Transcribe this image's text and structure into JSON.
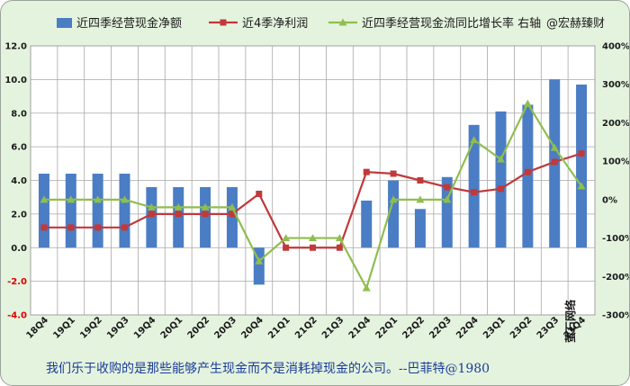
{
  "chart_data": {
    "type": "bar",
    "categories": [
      "18Q4",
      "19Q1",
      "19Q2",
      "19Q3",
      "19Q4",
      "20Q1",
      "20Q2",
      "20Q3",
      "20Q4",
      "21Q1",
      "21Q2",
      "21Q3",
      "21Q4",
      "22Q1",
      "22Q2",
      "22Q3",
      "22Q4",
      "23Q1",
      "23Q2",
      "23Q3",
      "23Q4"
    ],
    "series": [
      {
        "name": "近四季经营现金净额",
        "type": "bar",
        "axis": "left",
        "color": "#4a7dc4",
        "values": [
          4.4,
          4.4,
          4.4,
          4.4,
          3.6,
          3.6,
          3.6,
          3.6,
          -2.2,
          null,
          null,
          null,
          2.8,
          4.0,
          2.3,
          4.2,
          7.3,
          8.1,
          8.5,
          10.0,
          9.7
        ]
      },
      {
        "name": "近4季净利润",
        "type": "line",
        "axis": "left",
        "color": "#c0393b",
        "values": [
          1.2,
          1.2,
          1.2,
          1.2,
          2.0,
          2.0,
          2.0,
          2.0,
          3.2,
          0.0,
          0.0,
          0.0,
          4.5,
          4.4,
          4.0,
          3.6,
          3.3,
          3.5,
          4.5,
          5.1,
          5.6
        ]
      },
      {
        "name": "近四季经营现金流同比增长率 右轴",
        "type": "line",
        "axis": "right",
        "color": "#8fbe4f",
        "values": [
          0,
          0,
          0,
          0,
          -20,
          -20,
          -20,
          -20,
          -160,
          -100,
          -100,
          -100,
          -230,
          0,
          0,
          0,
          155,
          105,
          250,
          135,
          35
        ]
      }
    ],
    "left_axis": {
      "ylim": [
        -4.0,
        12.0
      ],
      "ticks": [
        "12.0",
        "10.0",
        "8.0",
        "6.0",
        "4.0",
        "2.0",
        "0.0",
        "-2.0",
        "-4.0"
      ]
    },
    "right_axis": {
      "ylim": [
        -300,
        400
      ],
      "ticks": [
        "400%",
        "300%",
        "200%",
        "100%",
        "0%",
        "-100%",
        "-200%",
        "-300%"
      ]
    },
    "legend": {
      "position": "top",
      "source_tag": "@宏赫臻财"
    },
    "grid": true
  },
  "caption": "我们乐于收购的是那些能够产生现金而不是消耗掉现金的公司。--巴菲特@1980",
  "source_label": "萤石网络",
  "colors": {
    "background": "#e4f3de",
    "plot": "#ffffff",
    "grid": "#a8a8a8",
    "caption": "#1a3c9a"
  }
}
